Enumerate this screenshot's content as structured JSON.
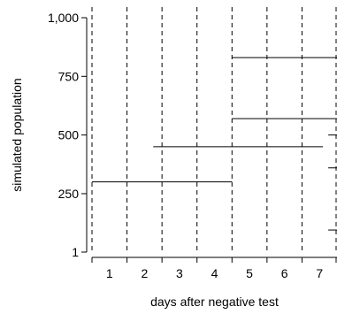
{
  "chart_data": {
    "type": "line",
    "xlabel": "days after negative test",
    "ylabel": "simulated population",
    "xlim": [
      0.5,
      7.5
    ],
    "ylim": [
      1,
      1000
    ],
    "x_ticks": [
      1,
      2,
      3,
      4,
      5,
      6,
      7
    ],
    "x_tick_labels": [
      "1",
      "2",
      "3",
      "4",
      "5",
      "6",
      "7"
    ],
    "y_ticks": [
      1,
      250,
      500,
      750,
      1000
    ],
    "y_tick_labels": [
      "1",
      "250",
      "500",
      "750",
      "1,000"
    ],
    "day_boundaries": [
      0.5,
      1.5,
      2.5,
      3.5,
      4.5,
      5.5,
      6.5,
      7.5
    ],
    "grid": "dashed vertical lines at day boundaries",
    "segments": [
      {
        "x_start": 0.5,
        "x_end": 4.5,
        "y": 300
      },
      {
        "x_start": 2.25,
        "x_end": 7.1,
        "y": 450
      },
      {
        "x_start": 4.5,
        "x_end": 7.5,
        "y": 570
      },
      {
        "x_start": 4.5,
        "x_end": 7.5,
        "y": 830
      },
      {
        "x_start": 7.25,
        "x_end": 7.5,
        "y": 500
      },
      {
        "x_start": 7.25,
        "x_end": 7.5,
        "y": 360
      },
      {
        "x_start": 7.25,
        "x_end": 7.5,
        "y": 95
      }
    ]
  }
}
